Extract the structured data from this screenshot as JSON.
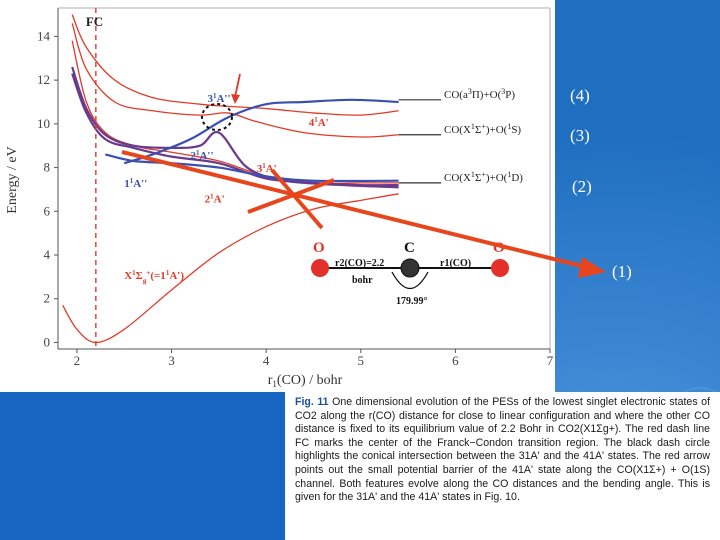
{
  "chart_data": {
    "type": "line",
    "xlabel": "r1(CO) / bohr",
    "ylabel": "Energy / eV",
    "xlim": [
      1.8,
      7.0
    ],
    "ylim": [
      -0.3,
      15.3
    ],
    "x_ticks": [
      "2",
      "3",
      "4",
      "5",
      "6",
      "7"
    ],
    "y_ticks": [
      "0",
      "2",
      "4",
      "6",
      "8",
      "10",
      "12",
      "14"
    ],
    "fc_line": {
      "x": 2.2,
      "label": "FC"
    },
    "series": [
      {
        "color": "#e23a2a",
        "points": [
          [
            1.85,
            1.7
          ],
          [
            2.0,
            0.6
          ],
          [
            2.2,
            0.0
          ],
          [
            2.5,
            0.6
          ],
          [
            3.0,
            2.4
          ],
          [
            3.5,
            4.1
          ],
          [
            4.0,
            5.3
          ],
          [
            4.5,
            6.1
          ],
          [
            5.0,
            6.5
          ],
          [
            5.4,
            6.8
          ]
        ]
      },
      {
        "color": "#e23a2a",
        "points": [
          [
            1.95,
            13.8
          ],
          [
            2.1,
            11.0
          ],
          [
            2.3,
            9.6
          ],
          [
            2.6,
            9.0
          ],
          [
            3.0,
            8.7
          ],
          [
            3.5,
            8.3
          ],
          [
            4.0,
            7.6
          ],
          [
            4.5,
            7.3
          ],
          [
            5.0,
            7.3
          ],
          [
            5.4,
            7.3
          ]
        ]
      },
      {
        "color": "#e23a2a",
        "points": [
          [
            1.95,
            14.6
          ],
          [
            2.1,
            12.5
          ],
          [
            2.4,
            11.0
          ],
          [
            2.8,
            10.6
          ],
          [
            3.3,
            10.4
          ],
          [
            3.6,
            10.5
          ],
          [
            3.9,
            10.1
          ],
          [
            4.4,
            9.6
          ],
          [
            5.0,
            9.4
          ],
          [
            5.4,
            9.5
          ]
        ]
      },
      {
        "color": "#e23a2a",
        "points": [
          [
            1.95,
            15.0
          ],
          [
            2.1,
            13.5
          ],
          [
            2.4,
            12.0
          ],
          [
            2.8,
            11.2
          ],
          [
            3.3,
            10.9
          ],
          [
            3.6,
            10.8
          ],
          [
            4.0,
            10.7
          ],
          [
            4.5,
            10.5
          ],
          [
            5.0,
            10.4
          ],
          [
            5.4,
            10.6
          ]
        ]
      },
      {
        "color": "#6a3a8c",
        "points": [
          [
            1.95,
            12.6
          ],
          [
            2.1,
            10.7
          ],
          [
            2.3,
            9.5
          ],
          [
            2.6,
            9.0
          ],
          [
            3.0,
            8.9
          ],
          [
            3.3,
            9.0
          ],
          [
            3.5,
            9.6
          ],
          [
            3.8,
            8.0
          ],
          [
            4.2,
            7.4
          ],
          [
            4.8,
            7.2
          ],
          [
            5.4,
            7.1
          ]
        ]
      },
      {
        "color": "#6a3a8c",
        "points": [
          [
            1.95,
            12.3
          ],
          [
            2.1,
            10.5
          ],
          [
            2.3,
            9.3
          ],
          [
            2.6,
            8.9
          ],
          [
            3.0,
            8.5
          ],
          [
            3.5,
            8.2
          ],
          [
            4.0,
            7.5
          ],
          [
            4.5,
            7.3
          ],
          [
            5.0,
            7.2
          ],
          [
            5.4,
            7.2
          ]
        ]
      },
      {
        "color": "#3a4fb0",
        "points": [
          [
            2.3,
            8.6
          ],
          [
            2.6,
            8.3
          ],
          [
            3.0,
            8.2
          ],
          [
            3.5,
            8.0
          ],
          [
            4.0,
            7.6
          ],
          [
            4.5,
            7.4
          ],
          [
            5.4,
            7.4
          ]
        ]
      },
      {
        "color": "#3a4fb0",
        "points": [
          [
            2.5,
            8.2
          ],
          [
            2.8,
            8.6
          ],
          [
            3.2,
            9.3
          ],
          [
            3.6,
            10.3
          ],
          [
            4.0,
            10.9
          ],
          [
            4.4,
            11.0
          ],
          [
            4.9,
            11.1
          ],
          [
            5.4,
            11.0
          ]
        ]
      }
    ],
    "asymptotes": [
      {
        "label_main": "CO(a",
        "label_sup1": "3",
        "label_mid": "Π)+O(",
        "label_sup2": "3",
        "label_end": "P)",
        "y": 11.1
      },
      {
        "label_main": "CO(X",
        "label_sup1": "1",
        "label_mid": "Σ",
        "label_sup2": "+",
        "label_end": ")+O(",
        "label_sup3": "1",
        "label_fin": "S)",
        "y": 9.5
      },
      {
        "label_main": "CO(X",
        "label_sup1": "1",
        "label_mid": "Σ",
        "label_sup2": "+",
        "label_end": ")+O(",
        "label_sup3": "1",
        "label_fin": "D)",
        "y": 7.3
      }
    ],
    "state_labels": [
      {
        "text": "3",
        "sup": "1",
        "main": "A''",
        "x": 3.38,
        "y": 11.0,
        "color": "#3a4fb0"
      },
      {
        "text": "4",
        "sup": "1",
        "main": "A'",
        "x": 4.45,
        "y": 9.9,
        "color": "#e23a2a"
      },
      {
        "text": "2",
        "sup": "1",
        "main": "A''",
        "x": 3.2,
        "y": 8.4,
        "color": "#3a4fb0"
      },
      {
        "text": "3",
        "sup": "1",
        "main": "A'",
        "x": 3.9,
        "y": 7.8,
        "color": "#e23a2a"
      },
      {
        "text": "1",
        "sup": "1",
        "main": "A''",
        "x": 2.5,
        "y": 7.1,
        "color": "#3a4fb0"
      },
      {
        "text": "2",
        "sup": "1",
        "main": "A'",
        "x": 3.35,
        "y": 6.4,
        "color": "#e23a2a"
      }
    ],
    "ground_label": {
      "main": "X",
      "sup1": "1",
      "sigma": "Σ",
      "sub": "g",
      "plus": "+",
      "rest": "(=1",
      "sup2": "1",
      "end": "A')",
      "x": 2.5,
      "y": 2.9
    },
    "molecule": {
      "left_atom": "O",
      "center_atom": "C",
      "right_atom": "O",
      "r2_label": "r2(CO)=2.2",
      "r2_unit": "bohr",
      "r1_label": "r1(CO)",
      "angle_label": "179.99°"
    }
  },
  "channel_labels": [
    "(4)",
    "(3)",
    "(2)",
    "(1)"
  ],
  "caption": {
    "fig_label": "Fig. 11",
    "text": "One dimensional evolution of the PESs of the lowest singlet electronic states of CO2 along the r(CO) distance for close to linear configuration and where the other CO distance is fixed to its equilibrium value of 2.2 Bohr in CO2(X1Σg+). The red dash line FC marks the center of the Franck−Condon transition region. The black dash circle highlights the conical intersection between the 31A' and the 41A' states. The red arrow points out the small potential barrier of the 41A' state along the CO(X1Σ+) + O(1S) channel. Both features evolve along the CO distances and the bending angle. This is given for the 31A' and the 41A' states in Fig. 10."
  },
  "colors": {
    "slide_bg": "#1f6fc0",
    "red": "#e23a2a",
    "purple": "#6a3a8c",
    "blue": "#3a4fb0",
    "arrow": "#e8451c"
  }
}
